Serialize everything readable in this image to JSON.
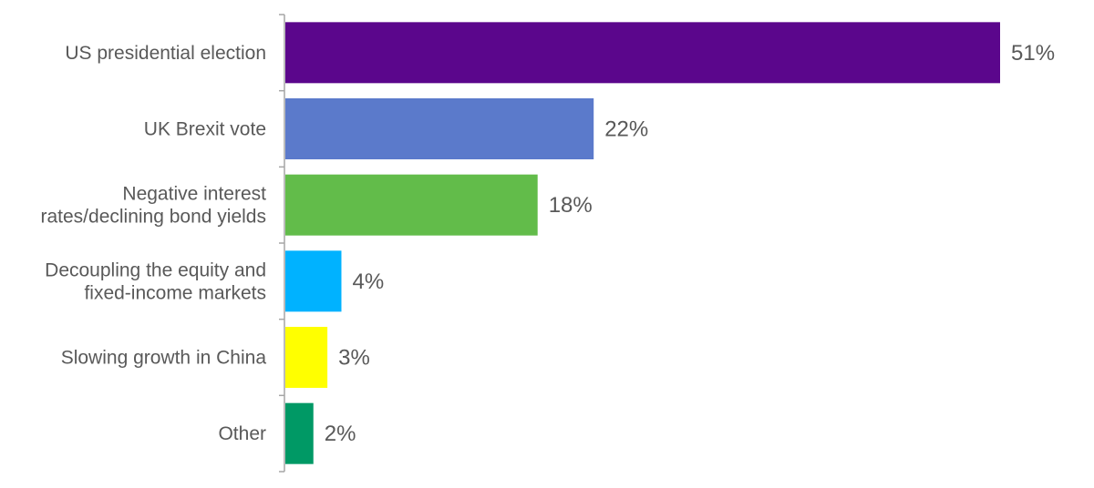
{
  "chart_data": {
    "type": "bar",
    "orientation": "horizontal",
    "title": "",
    "xlabel": "",
    "ylabel": "",
    "xlim": [
      0,
      51
    ],
    "grid": false,
    "value_suffix": "%",
    "categories": [
      [
        "US presidential election"
      ],
      [
        "UK Brexit vote"
      ],
      [
        "Negative interest",
        "rates/declining bond yields"
      ],
      [
        "Decoupling the equity and",
        "fixed-income markets"
      ],
      [
        "Slowing growth in China"
      ],
      [
        "Other"
      ]
    ],
    "values": [
      51,
      22,
      18,
      4,
      3,
      2
    ],
    "value_labels": [
      "51%",
      "22%",
      "18%",
      "4%",
      "3%",
      "2%"
    ],
    "colors": [
      "#5b068c",
      "#5b7acb",
      "#62bc4a",
      "#00b2ff",
      "#ffff00",
      "#009965"
    ]
  }
}
